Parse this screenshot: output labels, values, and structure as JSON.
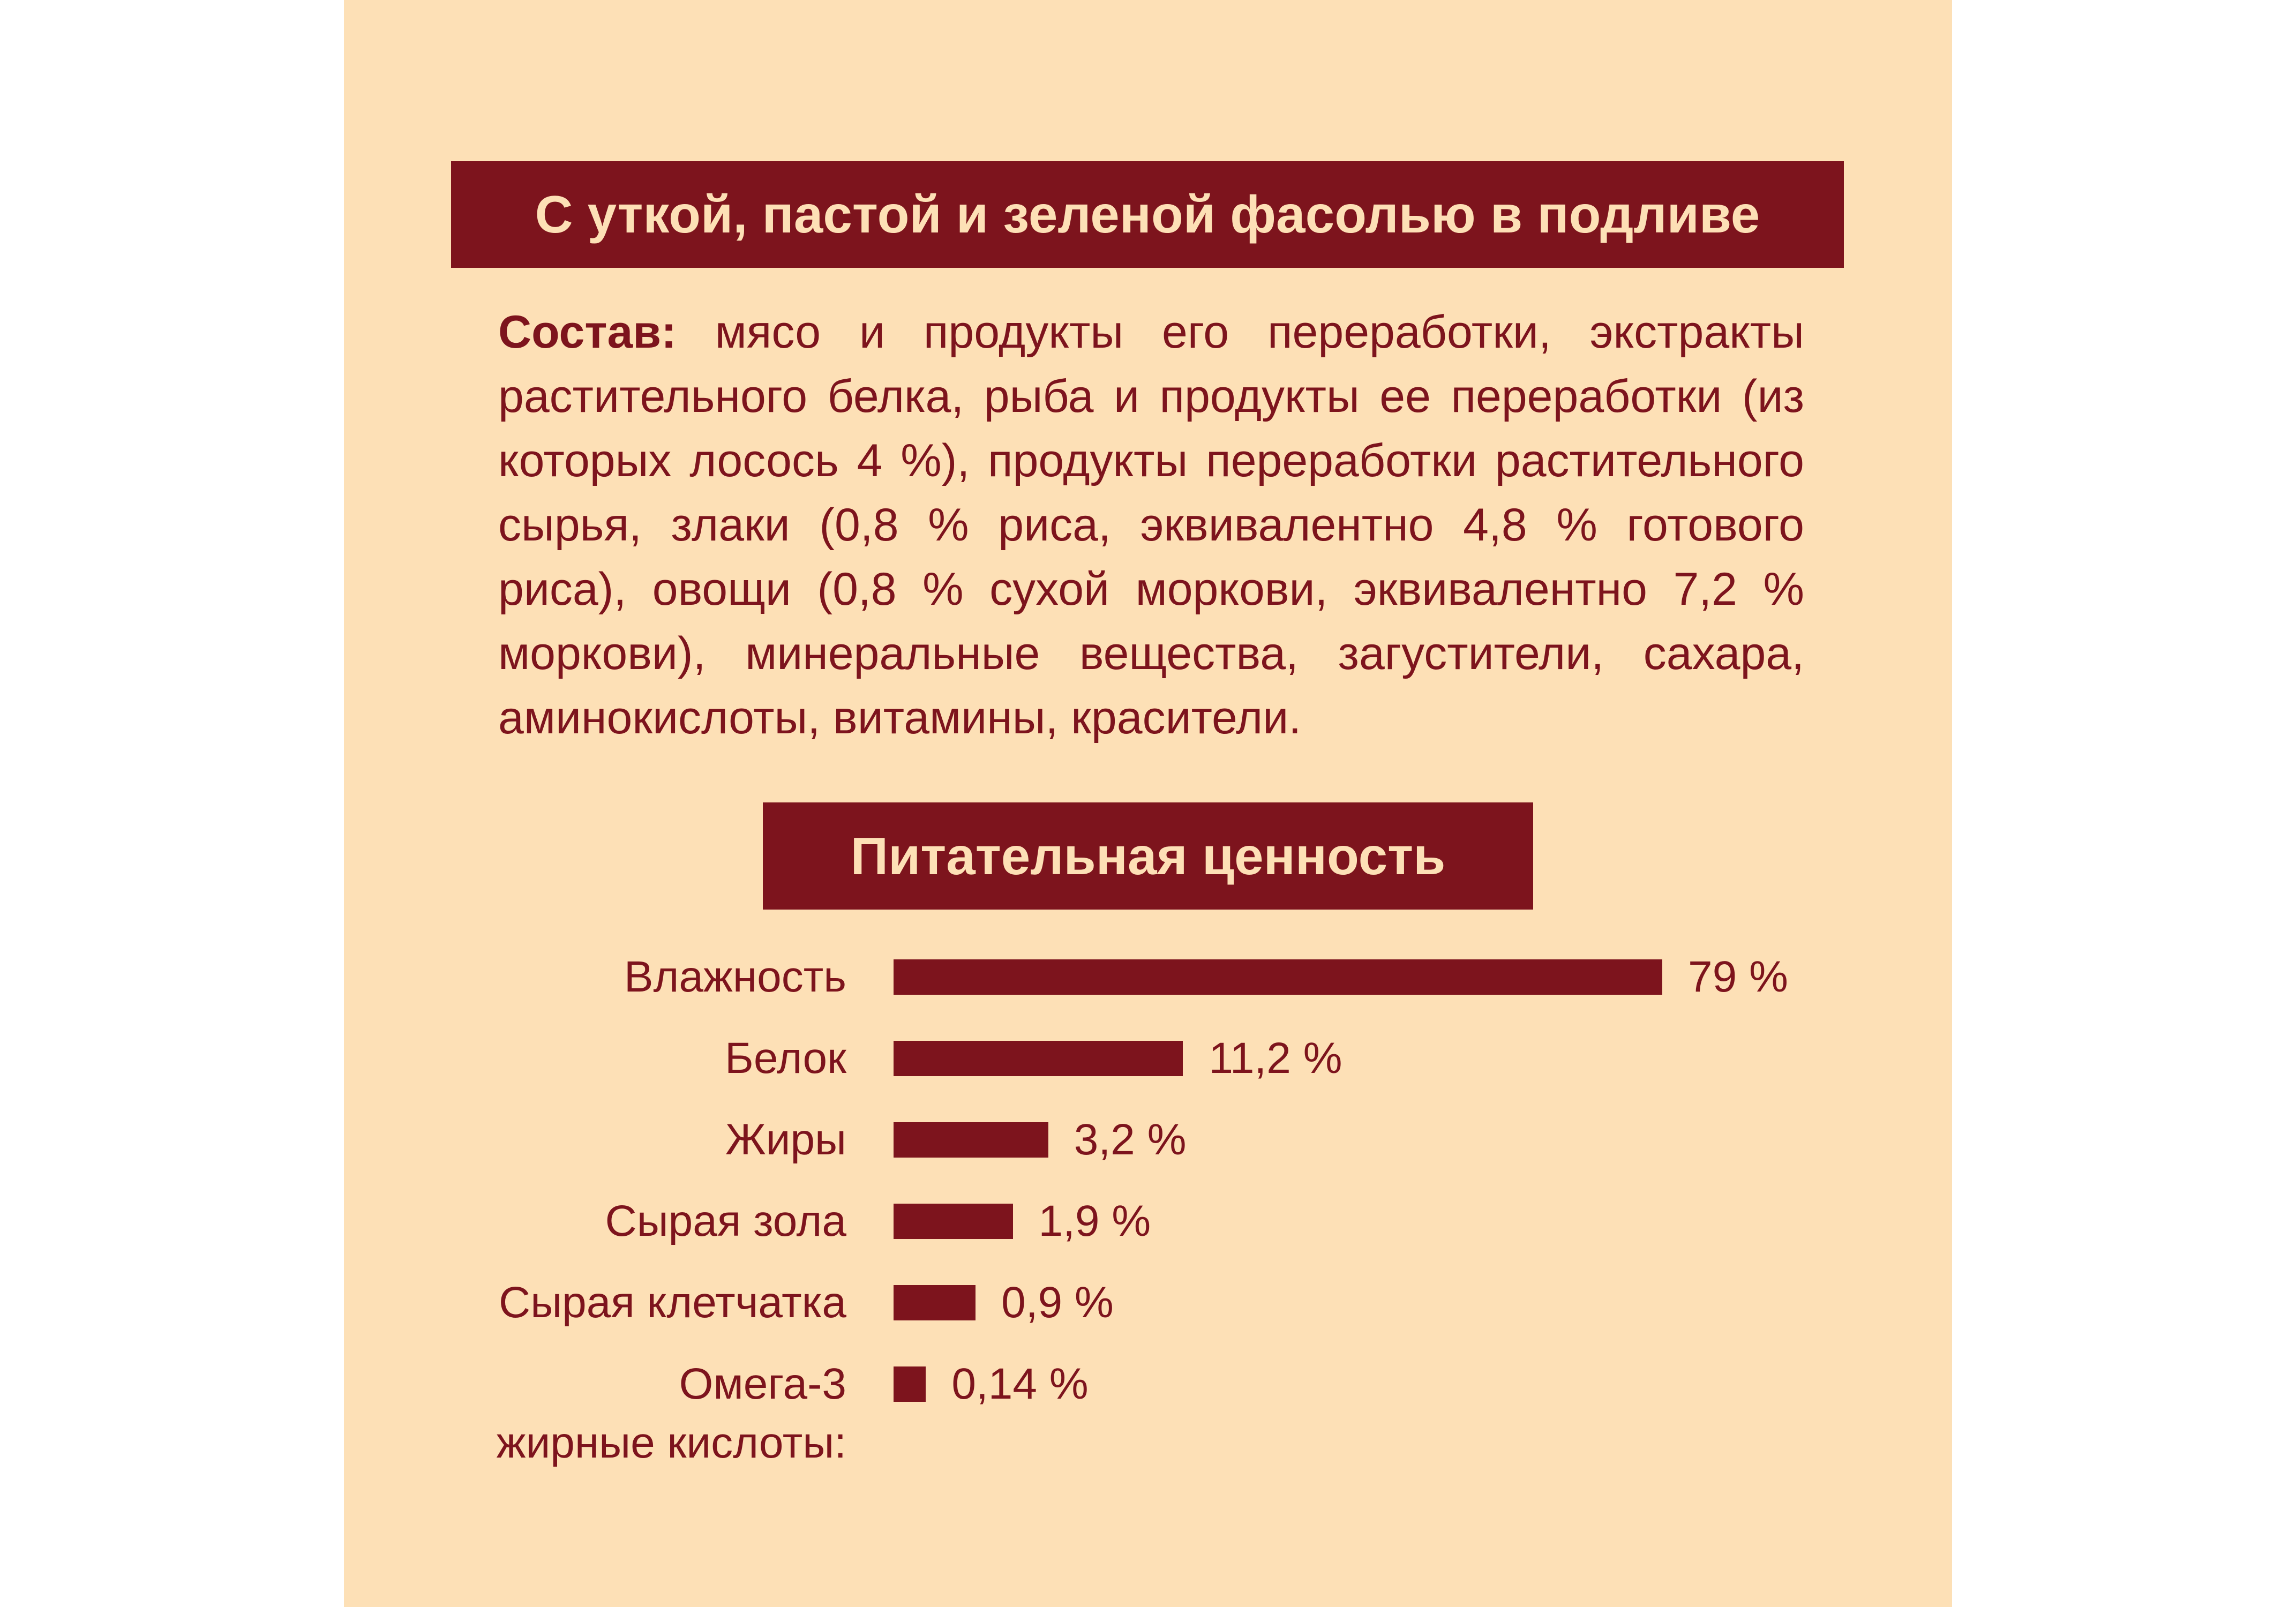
{
  "header": {
    "title": "С уткой, пастой и зеленой фасолью в подливе"
  },
  "composition": {
    "label": "Состав:",
    "text": "мясо и продукты его переработки, экстракты растительного белка, рыба и продукты ее переработки (из которых лосось 4 %), продукты переработки растительного сырья, злаки (0,8 % риса, эквивалентно 4,8 % готового риса), овощи (0,8 % сухой моркови, эквивалентно 7,2 % моркови), минеральные вещества, загустители, сахара, аминокислоты, витамины, красители."
  },
  "chart_data": {
    "type": "bar",
    "title": "Питательная ценность",
    "categories": [
      "Влажность",
      "Белок",
      "Жиры",
      "Сырая зола",
      "Сырая клетчатка",
      "Омега-3\nжирные кислоты:"
    ],
    "values": [
      79,
      11.2,
      3.2,
      1.9,
      0.9,
      0.14
    ],
    "value_labels": [
      "79 %",
      "11,2 %",
      "3,2 %",
      "1,9 %",
      "0,9 %",
      "0,14 %"
    ],
    "color": "#7d141d"
  }
}
